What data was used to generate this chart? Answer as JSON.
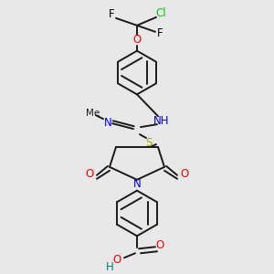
{
  "bg_color": "#e8e8e8",
  "line_color": "#1a1a1a",
  "line_width": 1.4,
  "colors": {
    "Cl": "#00cc00",
    "F": "#000000",
    "O": "#ff0000",
    "N": "#0000ff",
    "NH": "#0000cc",
    "H_cooh": "#008080",
    "S": "#aaaa00",
    "C": "#1a1a1a"
  },
  "fontsize": 8.5
}
